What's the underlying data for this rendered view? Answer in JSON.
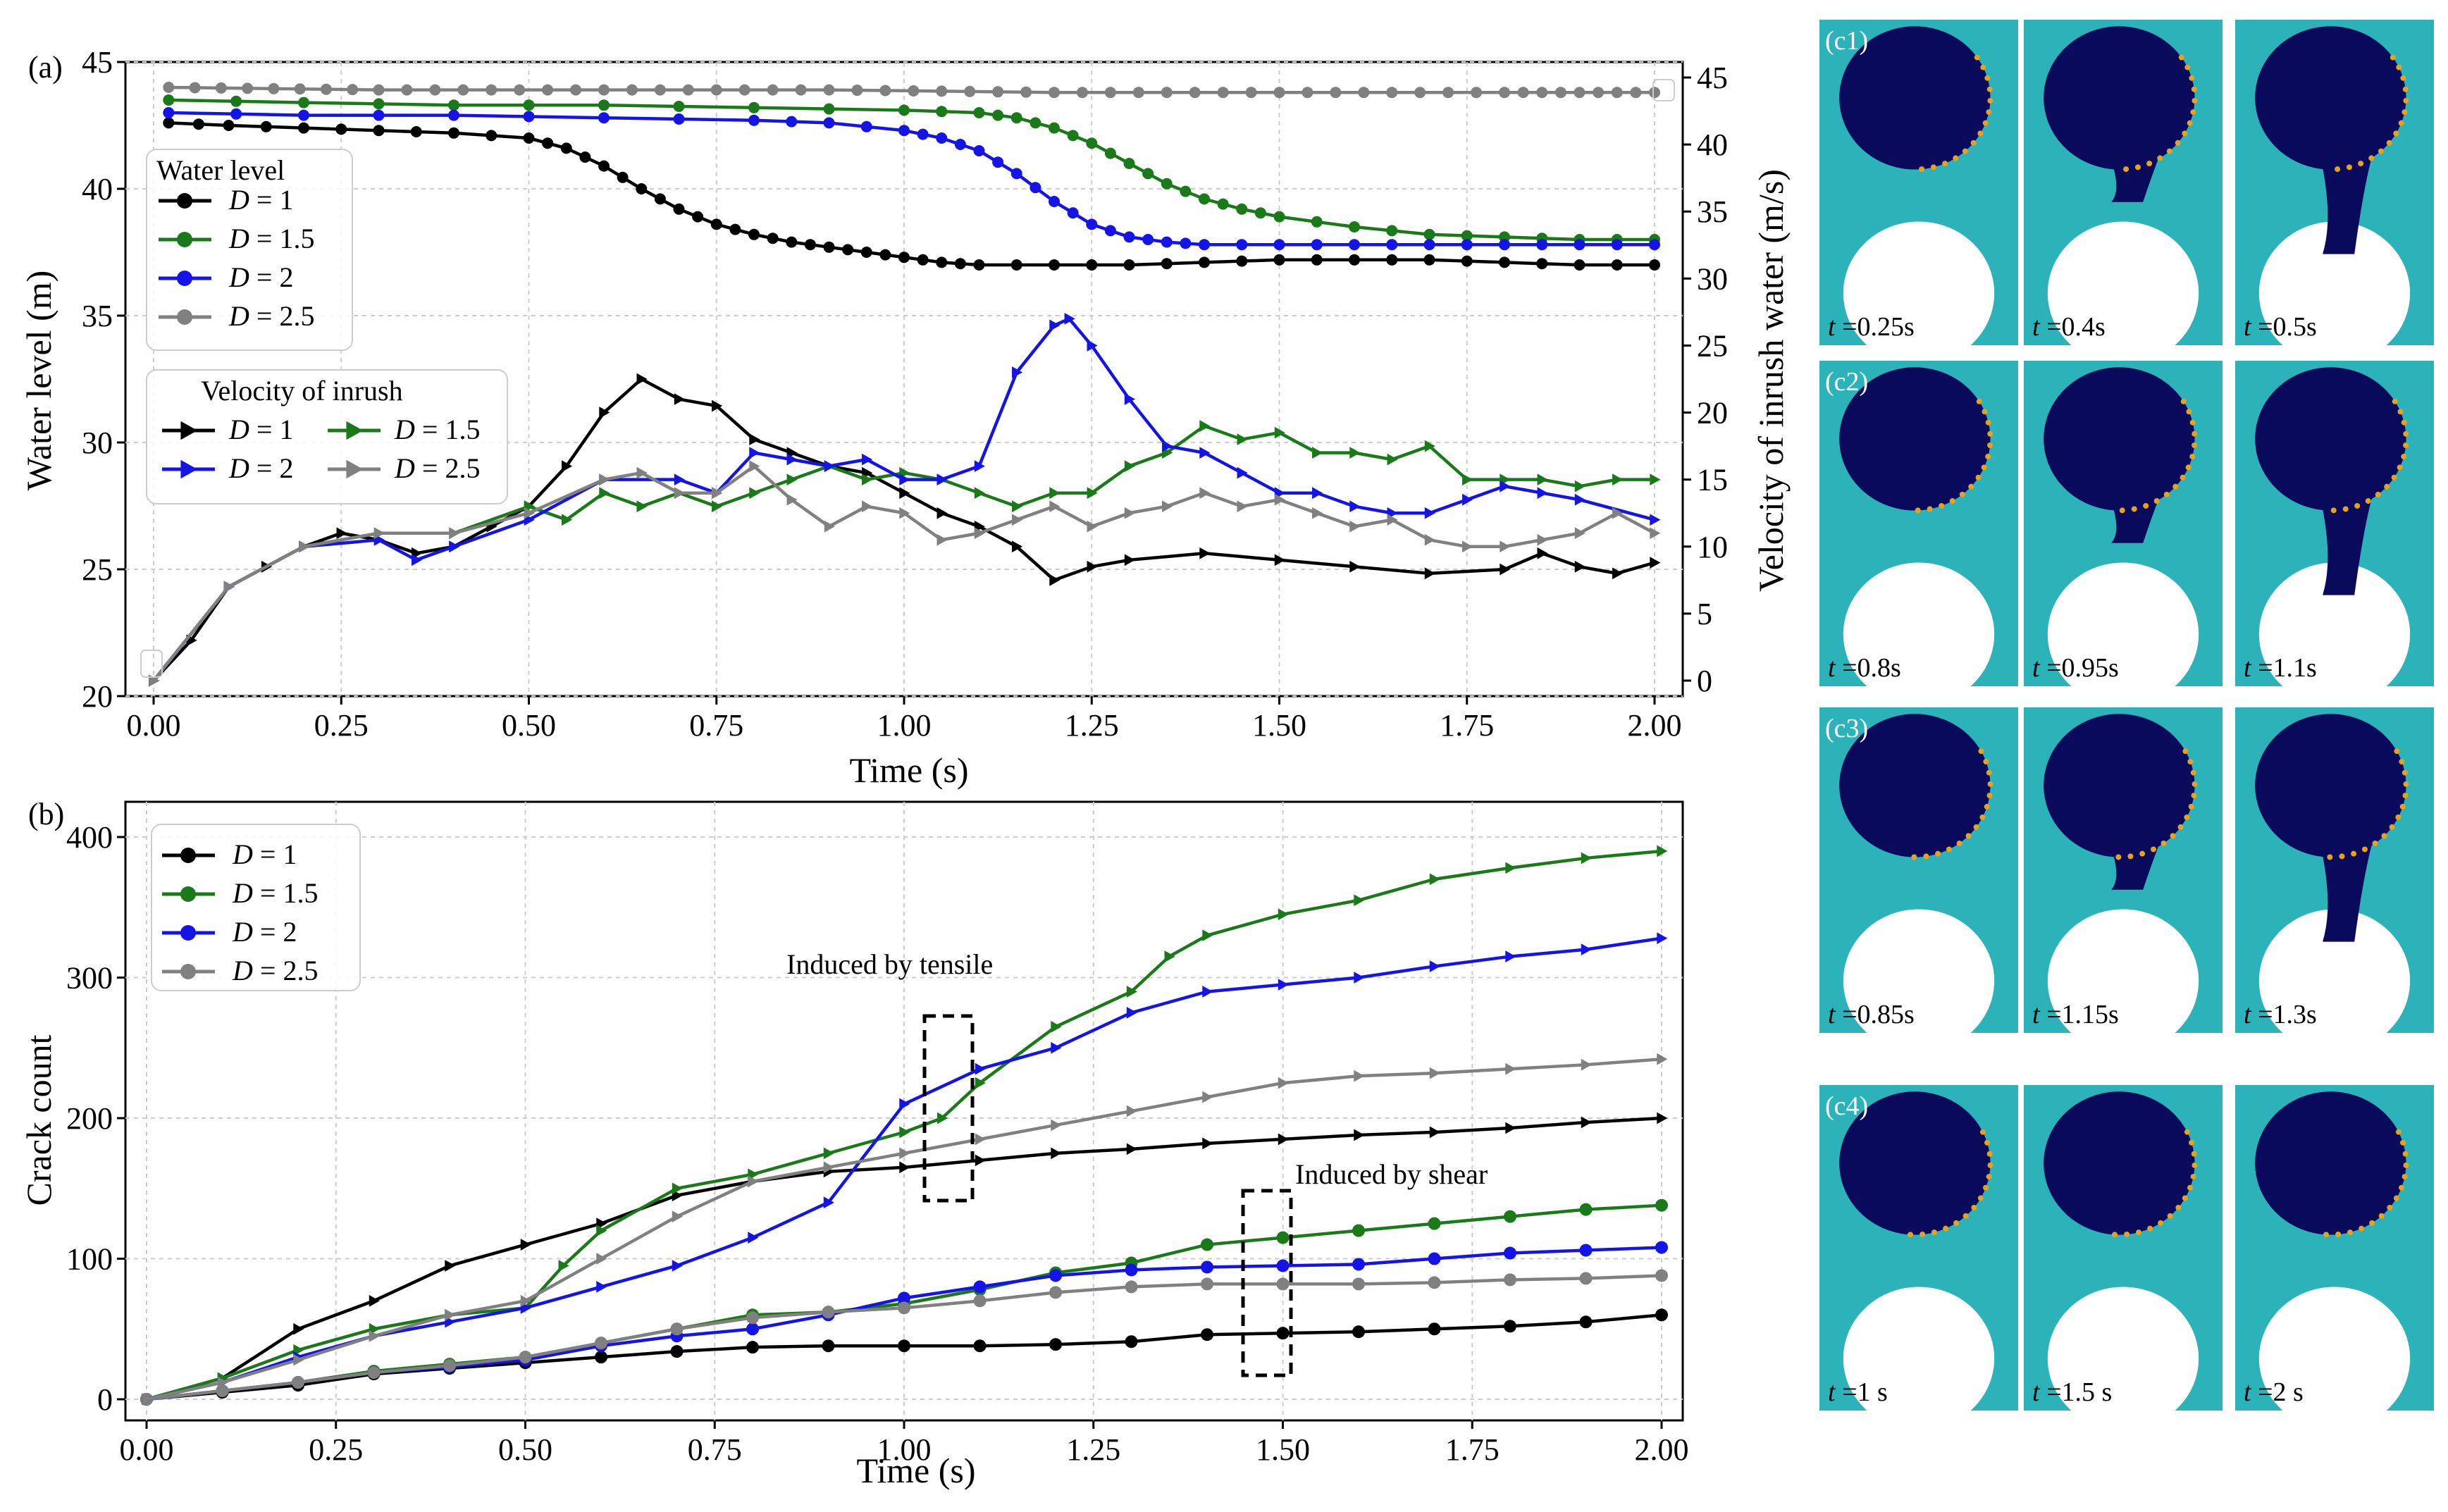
{
  "panel_a": {
    "label": "(a)",
    "xlabel": "Time (s)",
    "ylabel_left": "Water level (m)",
    "ylabel_right": "Velocity of inrush water (m/s)",
    "xticks": [
      "0.00",
      "0.25",
      "0.50",
      "0.75",
      "1.00",
      "1.25",
      "1.50",
      "1.75",
      "2.00"
    ],
    "yticks_left": [
      "20",
      "25",
      "30",
      "35",
      "40",
      "45"
    ],
    "yticks_right": [
      "0",
      "5",
      "10",
      "15",
      "20",
      "25",
      "30",
      "35",
      "40",
      "45"
    ],
    "legend_water_title": "Water level",
    "legend_velocity_title": "Velocity of inrush",
    "legend_labels": [
      "D = 1",
      "D = 1.5",
      "D = 2",
      "D = 2.5"
    ]
  },
  "panel_b": {
    "label": "(b)",
    "xlabel": "Time (s)",
    "ylabel": "Crack count",
    "xticks": [
      "0.00",
      "0.25",
      "0.50",
      "0.75",
      "1.00",
      "1.25",
      "1.50",
      "1.75",
      "2.00"
    ],
    "yticks": [
      "0",
      "100",
      "200",
      "300",
      "400"
    ],
    "legend_labels": [
      "D = 1",
      "D = 1.5",
      "D = 2",
      "D = 2.5"
    ],
    "annotation_tensile": "Induced by tensile",
    "annotation_shear": "Induced by shear"
  },
  "colors": {
    "D1": "#000000",
    "D1_5": "#1a7a1a",
    "D2": "#1414e6",
    "D2_5": "#808080",
    "teal": "#2bb3b9",
    "navy": "#0a0a5c"
  },
  "snapshots": [
    {
      "label": "(c1)",
      "times": [
        "t =0.25s",
        "t =0.4s",
        "t =0.5s"
      ]
    },
    {
      "label": "(c2)",
      "times": [
        "t =0.8s",
        "t =0.95s",
        "t =1.1s"
      ]
    },
    {
      "label": "(c3)",
      "times": [
        "t =0.85s",
        "t =1.15s",
        "t =1.3s"
      ]
    },
    {
      "label": "(c4)",
      "times": [
        "t =1 s",
        "t =1.5 s",
        "t =2 s"
      ]
    }
  ],
  "chart_data": [
    {
      "type": "line",
      "title": "(a)",
      "xlabel": "Time (s)",
      "ylabel": "Water level (m)",
      "y2label": "Velocity of inrush water (m/s)",
      "xlim": [
        0,
        2
      ],
      "ylim": [
        20,
        45
      ],
      "y2lim": [
        0,
        45
      ],
      "water_level": [
        {
          "name": "D = 1",
          "x": [
            0.02,
            0.1,
            0.2,
            0.3,
            0.4,
            0.5,
            0.55,
            0.6,
            0.65,
            0.7,
            0.75,
            0.8,
            0.85,
            0.9,
            0.95,
            1.0,
            1.05,
            1.1,
            1.2,
            1.3,
            1.4,
            1.5,
            1.6,
            1.7,
            1.8,
            1.9,
            2.0
          ],
          "y": [
            42.6,
            42.5,
            42.4,
            42.3,
            42.2,
            42.0,
            41.6,
            40.9,
            40.0,
            39.2,
            38.6,
            38.2,
            37.9,
            37.7,
            37.5,
            37.3,
            37.1,
            37.0,
            37.0,
            37.0,
            37.1,
            37.2,
            37.2,
            37.2,
            37.1,
            37.0,
            37.0
          ]
        },
        {
          "name": "D = 1.5",
          "x": [
            0.02,
            0.2,
            0.4,
            0.6,
            0.8,
            1.0,
            1.1,
            1.15,
            1.2,
            1.25,
            1.3,
            1.35,
            1.4,
            1.45,
            1.5,
            1.6,
            1.7,
            1.8,
            1.9,
            2.0
          ],
          "y": [
            43.5,
            43.4,
            43.3,
            43.3,
            43.2,
            43.1,
            43.0,
            42.8,
            42.4,
            41.8,
            41.0,
            40.2,
            39.6,
            39.2,
            38.9,
            38.5,
            38.2,
            38.1,
            38.0,
            38.0
          ]
        },
        {
          "name": "D = 2",
          "x": [
            0.02,
            0.2,
            0.4,
            0.6,
            0.8,
            0.9,
            1.0,
            1.05,
            1.1,
            1.15,
            1.2,
            1.25,
            1.3,
            1.35,
            1.4,
            1.5,
            1.6,
            1.7,
            1.8,
            1.9,
            2.0
          ],
          "y": [
            43.0,
            42.9,
            42.9,
            42.8,
            42.7,
            42.6,
            42.3,
            42.0,
            41.5,
            40.6,
            39.5,
            38.6,
            38.1,
            37.9,
            37.8,
            37.8,
            37.8,
            37.8,
            37.8,
            37.8,
            37.8
          ]
        },
        {
          "name": "D = 2.5",
          "x": [
            0.02,
            0.3,
            0.6,
            0.9,
            1.2,
            1.5,
            1.8,
            2.0
          ],
          "y": [
            44.0,
            43.9,
            43.9,
            43.9,
            43.8,
            43.8,
            43.8,
            43.8
          ]
        }
      ],
      "velocity": [
        {
          "name": "D = 1",
          "x": [
            0.0,
            0.05,
            0.1,
            0.15,
            0.2,
            0.25,
            0.3,
            0.35,
            0.4,
            0.45,
            0.5,
            0.55,
            0.6,
            0.65,
            0.7,
            0.75,
            0.8,
            0.85,
            0.9,
            0.95,
            1.0,
            1.05,
            1.1,
            1.15,
            1.2,
            1.25,
            1.3,
            1.4,
            1.5,
            1.6,
            1.7,
            1.8,
            1.85,
            1.9,
            1.95,
            2.0
          ],
          "y": [
            0,
            3,
            7,
            8.5,
            10,
            11,
            10.5,
            9.5,
            10,
            11.5,
            13,
            16,
            20,
            22.5,
            21,
            20.5,
            18,
            17,
            16,
            15.5,
            14,
            12.5,
            11.5,
            10,
            7.5,
            8.5,
            9,
            9.5,
            9,
            8.5,
            8,
            8.3,
            9.5,
            8.5,
            8,
            8.8
          ]
        },
        {
          "name": "D = 1.5",
          "x": [
            0.0,
            0.1,
            0.2,
            0.3,
            0.4,
            0.5,
            0.55,
            0.6,
            0.65,
            0.7,
            0.75,
            0.8,
            0.85,
            0.9,
            0.95,
            1.0,
            1.05,
            1.1,
            1.15,
            1.2,
            1.25,
            1.3,
            1.35,
            1.4,
            1.45,
            1.5,
            1.55,
            1.6,
            1.65,
            1.7,
            1.75,
            1.8,
            1.85,
            1.9,
            1.95,
            2.0
          ],
          "y": [
            0,
            7,
            10,
            11,
            11,
            13,
            12,
            14,
            13,
            14,
            13,
            14,
            15,
            16,
            15,
            15.5,
            15,
            14,
            13,
            14,
            14,
            16,
            17,
            19,
            18,
            18.5,
            17,
            17,
            16.5,
            17.5,
            15,
            15,
            15,
            14.5,
            15,
            15
          ]
        },
        {
          "name": "D = 2",
          "x": [
            0.0,
            0.1,
            0.2,
            0.3,
            0.35,
            0.4,
            0.5,
            0.6,
            0.7,
            0.75,
            0.8,
            0.85,
            0.9,
            0.95,
            1.0,
            1.05,
            1.1,
            1.15,
            1.2,
            1.22,
            1.25,
            1.3,
            1.35,
            1.4,
            1.45,
            1.5,
            1.55,
            1.6,
            1.65,
            1.7,
            1.75,
            1.8,
            1.85,
            1.9,
            2.0
          ],
          "y": [
            0,
            7,
            10,
            10.5,
            9,
            10,
            12,
            15,
            15,
            14,
            17,
            16.5,
            16,
            16.5,
            15,
            15,
            16,
            23,
            26.5,
            27,
            25,
            21,
            17.5,
            17,
            15.5,
            14,
            14,
            13,
            12.5,
            12.5,
            13.5,
            14.5,
            14,
            13.5,
            12
          ]
        },
        {
          "name": "D = 2.5",
          "x": [
            0.0,
            0.1,
            0.2,
            0.3,
            0.4,
            0.5,
            0.6,
            0.65,
            0.7,
            0.75,
            0.8,
            0.85,
            0.9,
            0.95,
            1.0,
            1.05,
            1.1,
            1.15,
            1.2,
            1.25,
            1.3,
            1.35,
            1.4,
            1.45,
            1.5,
            1.55,
            1.6,
            1.65,
            1.7,
            1.75,
            1.8,
            1.85,
            1.9,
            1.95,
            2.0
          ],
          "y": [
            0,
            7,
            10,
            11,
            11,
            12.5,
            15,
            15.5,
            14,
            14,
            16,
            13.5,
            11.5,
            13,
            12.5,
            10.5,
            11,
            12,
            13,
            11.5,
            12.5,
            13,
            14,
            13,
            13.5,
            12.5,
            11.5,
            12,
            10.5,
            10,
            10,
            10.5,
            11,
            12.5,
            11
          ]
        }
      ]
    },
    {
      "type": "line",
      "title": "(b)",
      "xlabel": "Time (s)",
      "ylabel": "Crack count",
      "xlim": [
        0,
        2
      ],
      "ylim": [
        0,
        400
      ],
      "series": [
        {
          "name": "D = 1",
          "marker": "circle",
          "x": [
            0,
            0.1,
            0.2,
            0.3,
            0.4,
            0.5,
            0.6,
            0.7,
            0.8,
            0.9,
            1.0,
            1.1,
            1.2,
            1.3,
            1.4,
            1.5,
            1.6,
            1.7,
            1.8,
            1.9,
            2.0
          ],
          "y": [
            0,
            5,
            10,
            18,
            22,
            26,
            30,
            34,
            37,
            38,
            38,
            38,
            39,
            41,
            46,
            47,
            48,
            50,
            52,
            55,
            60
          ]
        },
        {
          "name": "D = 1.5",
          "marker": "circle",
          "x": [
            0,
            0.1,
            0.2,
            0.3,
            0.4,
            0.5,
            0.6,
            0.7,
            0.8,
            0.9,
            1.0,
            1.1,
            1.2,
            1.3,
            1.4,
            1.5,
            1.6,
            1.7,
            1.8,
            1.9,
            2.0
          ],
          "y": [
            0,
            6,
            12,
            20,
            25,
            30,
            40,
            50,
            60,
            62,
            68,
            78,
            90,
            97,
            110,
            115,
            120,
            125,
            130,
            135,
            138
          ]
        },
        {
          "name": "D = 2",
          "marker": "circle",
          "x": [
            0,
            0.1,
            0.2,
            0.3,
            0.4,
            0.5,
            0.6,
            0.7,
            0.8,
            0.9,
            1.0,
            1.1,
            1.2,
            1.3,
            1.4,
            1.5,
            1.6,
            1.7,
            1.8,
            1.9,
            2.0
          ],
          "y": [
            0,
            6,
            12,
            19,
            23,
            28,
            38,
            45,
            50,
            60,
            72,
            80,
            88,
            92,
            94,
            95,
            96,
            100,
            104,
            106,
            108
          ]
        },
        {
          "name": "D = 2.5",
          "marker": "circle",
          "x": [
            0,
            0.1,
            0.2,
            0.3,
            0.4,
            0.5,
            0.6,
            0.7,
            0.8,
            0.9,
            1.0,
            1.1,
            1.2,
            1.3,
            1.4,
            1.5,
            1.6,
            1.7,
            1.8,
            1.9,
            2.0
          ],
          "y": [
            0,
            6,
            12,
            19,
            24,
            30,
            40,
            50,
            58,
            62,
            65,
            70,
            76,
            80,
            82,
            82,
            82,
            83,
            85,
            86,
            88
          ]
        },
        {
          "name": "D = 1 (tensile)",
          "marker": "triangle",
          "x": [
            0,
            0.1,
            0.2,
            0.3,
            0.4,
            0.5,
            0.6,
            0.7,
            0.8,
            0.9,
            1.0,
            1.1,
            1.2,
            1.3,
            1.4,
            1.5,
            1.6,
            1.7,
            1.8,
            1.9,
            2.0
          ],
          "y": [
            0,
            15,
            50,
            70,
            95,
            110,
            125,
            145,
            155,
            162,
            165,
            170,
            175,
            178,
            182,
            185,
            188,
            190,
            193,
            197,
            200
          ]
        },
        {
          "name": "D = 1.5 (tensile)",
          "marker": "triangle",
          "x": [
            0,
            0.1,
            0.2,
            0.3,
            0.4,
            0.5,
            0.55,
            0.6,
            0.7,
            0.8,
            0.9,
            1.0,
            1.05,
            1.1,
            1.2,
            1.3,
            1.35,
            1.4,
            1.5,
            1.6,
            1.7,
            1.8,
            1.9,
            2.0
          ],
          "y": [
            0,
            15,
            35,
            50,
            60,
            65,
            95,
            120,
            150,
            160,
            175,
            190,
            200,
            225,
            265,
            290,
            315,
            330,
            345,
            355,
            370,
            378,
            385,
            390
          ]
        },
        {
          "name": "D = 2 (tensile)",
          "marker": "triangle",
          "x": [
            0,
            0.1,
            0.2,
            0.3,
            0.4,
            0.5,
            0.6,
            0.7,
            0.8,
            0.9,
            1.0,
            1.1,
            1.2,
            1.3,
            1.4,
            1.5,
            1.6,
            1.7,
            1.8,
            1.9,
            2.0
          ],
          "y": [
            0,
            12,
            30,
            45,
            55,
            65,
            80,
            95,
            115,
            140,
            210,
            235,
            250,
            275,
            290,
            295,
            300,
            308,
            315,
            320,
            328
          ]
        },
        {
          "name": "D = 2.5 (tensile)",
          "marker": "triangle",
          "x": [
            0,
            0.1,
            0.2,
            0.3,
            0.4,
            0.5,
            0.6,
            0.7,
            0.8,
            0.9,
            1.0,
            1.1,
            1.2,
            1.3,
            1.4,
            1.5,
            1.6,
            1.7,
            1.8,
            1.9,
            2.0
          ],
          "y": [
            0,
            12,
            28,
            45,
            60,
            70,
            100,
            130,
            155,
            165,
            175,
            185,
            195,
            205,
            215,
            225,
            230,
            232,
            235,
            238,
            242
          ]
        }
      ]
    }
  ]
}
